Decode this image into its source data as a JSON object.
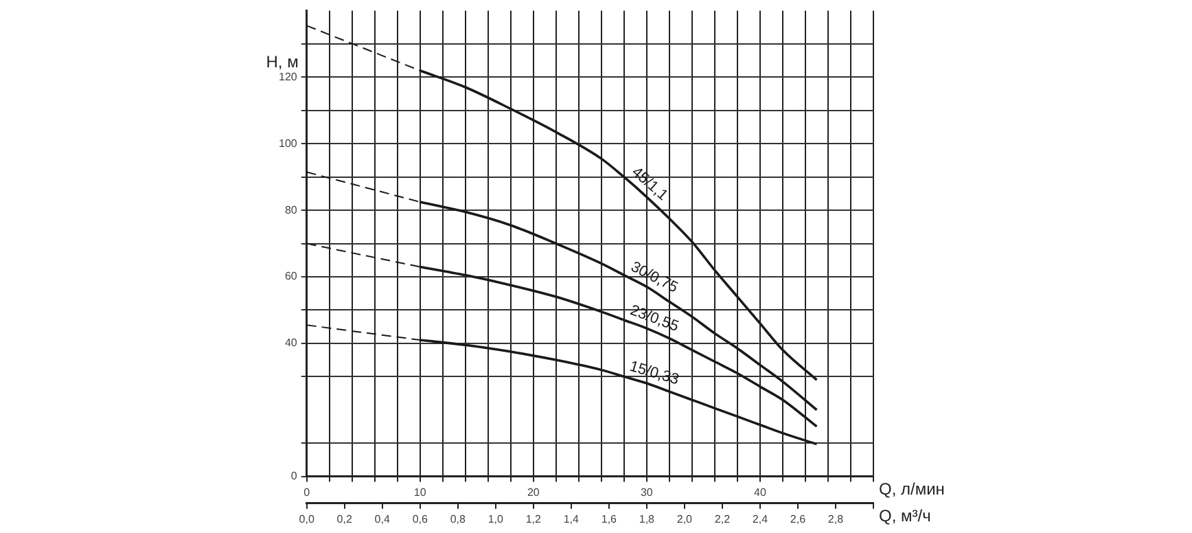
{
  "chart_data": {
    "type": "line",
    "xlabel": "Q, л/мин",
    "x2label": "Q, м³/ч",
    "ylabel": "H, м",
    "x": [
      0,
      10,
      14,
      18,
      22,
      26,
      28,
      30,
      32,
      34,
      36,
      38,
      40,
      42,
      45
    ],
    "series": [
      {
        "name": "45/1,1",
        "color": "#1a1a1a",
        "values": [
          null,
          122,
          117,
          110.5,
          103.5,
          95.5,
          90,
          84,
          77.5,
          70.5,
          62,
          54,
          46,
          38,
          29
        ]
      },
      {
        "name": "30/0,75",
        "color": "#1a1a1a",
        "values": [
          null,
          82.5,
          79.5,
          75.5,
          70,
          64,
          60.5,
          57,
          52.5,
          48,
          43,
          38.5,
          33.5,
          28.5,
          20
        ]
      },
      {
        "name": "23/0,55",
        "color": "#1a1a1a",
        "values": [
          null,
          63,
          60.5,
          57.5,
          54,
          49.5,
          47,
          44.5,
          41.5,
          38,
          34.5,
          31,
          27,
          23,
          15
        ]
      },
      {
        "name": "15/0,33",
        "color": "#1a1a1a",
        "values": [
          null,
          41,
          39.5,
          37.5,
          35,
          32,
          30,
          28,
          25.5,
          23,
          20.5,
          18,
          15.5,
          13,
          9.7
        ]
      },
      {
        "color": "#1a1a1a",
        "values": [
          135.5,
          122,
          null,
          null,
          null,
          null,
          null,
          null,
          null,
          null,
          null,
          null,
          null,
          null,
          null
        ],
        "line_style": "dashed"
      },
      {
        "color": "#1a1a1a",
        "values": [
          91.5,
          82.5,
          null,
          null,
          null,
          null,
          null,
          null,
          null,
          null,
          null,
          null,
          null,
          null,
          null
        ],
        "line_style": "dashed"
      },
      {
        "color": "#1a1a1a",
        "values": [
          70,
          63,
          null,
          null,
          null,
          null,
          null,
          null,
          null,
          null,
          null,
          null,
          null,
          null,
          null
        ],
        "line_style": "dashed"
      },
      {
        "color": "#1a1a1a",
        "values": [
          45.5,
          41,
          null,
          null,
          null,
          null,
          null,
          null,
          null,
          null,
          null,
          null,
          null,
          null,
          null
        ],
        "line_style": "dashed"
      }
    ],
    "xlim": [
      0,
      50
    ],
    "xticks": [
      0,
      {
        "value": 2,
        "label": null
      },
      {
        "value": 4,
        "label": null
      },
      {
        "value": 6,
        "label": null
      },
      {
        "value": 8,
        "label": null
      },
      10,
      {
        "value": 12,
        "label": null
      },
      {
        "value": 14,
        "label": null
      },
      {
        "value": 16,
        "label": null
      },
      {
        "value": 18,
        "label": null
      },
      20,
      {
        "value": 22,
        "label": null
      },
      {
        "value": 24,
        "label": null
      },
      {
        "value": 26,
        "label": null
      },
      {
        "value": 28,
        "label": null
      },
      30,
      {
        "value": 32,
        "label": null
      },
      {
        "value": 34,
        "label": null
      },
      {
        "value": 36,
        "label": null
      },
      {
        "value": 38,
        "label": null
      },
      40,
      {
        "value": 42,
        "label": null
      },
      {
        "value": 44,
        "label": null
      },
      {
        "value": 46,
        "label": null
      },
      {
        "value": 48,
        "label": null
      },
      {
        "value": 50,
        "label": null
      }
    ],
    "x2lim": [
      0,
      3
    ],
    "x2ticks": [
      {
        "value": 0,
        "label": "0,0"
      },
      {
        "value": 0.2,
        "label": "0,2"
      },
      {
        "value": 0.4,
        "label": "0,4"
      },
      {
        "value": 0.6,
        "label": "0,6"
      },
      {
        "value": 0.8,
        "label": "0,8"
      },
      {
        "value": 1,
        "label": "1,0"
      },
      {
        "value": 1.2,
        "label": "1,2"
      },
      {
        "value": 1.4,
        "label": "1,4"
      },
      {
        "value": 1.6,
        "label": "1,6"
      },
      {
        "value": 1.8,
        "label": "1,8"
      },
      {
        "value": 2,
        "label": "2,0"
      },
      {
        "value": 2.2,
        "label": "2,2"
      },
      {
        "value": 2.4,
        "label": "2,4"
      },
      {
        "value": 2.6,
        "label": "2,6"
      },
      {
        "value": 2.8,
        "label": "2,8"
      },
      {
        "value": 3,
        "label": null
      }
    ],
    "ylim": [
      0,
      140
    ],
    "yticks": [
      0,
      {
        "value": 10,
        "label": null
      },
      {
        "value": 30,
        "label": null
      },
      40,
      {
        "value": 50,
        "label": null
      },
      60,
      {
        "value": 70,
        "label": null
      },
      80,
      {
        "value": 90,
        "label": null
      },
      100,
      {
        "value": 110,
        "label": null
      },
      120,
      {
        "value": 130,
        "label": null
      }
    ],
    "grid": true,
    "legend": false,
    "marker": "none",
    "line_style": "solid"
  }
}
